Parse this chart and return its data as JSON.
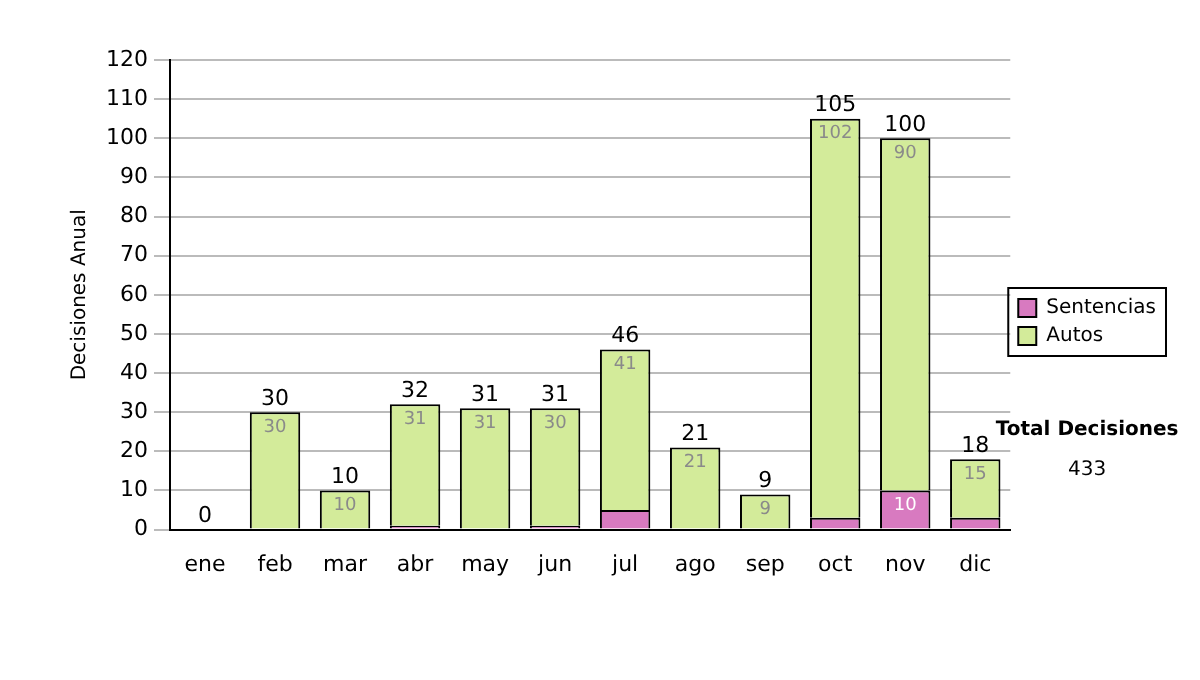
{
  "chart_data": {
    "type": "bar",
    "stacked": true,
    "ylabel": "Decisiones Anual",
    "categories": [
      "ene",
      "feb",
      "mar",
      "abr",
      "may",
      "jun",
      "jul",
      "ago",
      "sep",
      "oct",
      "nov",
      "dic"
    ],
    "series": [
      {
        "name": "Sentencias",
        "color": "#d87ac0",
        "values": [
          0,
          0,
          0,
          1,
          0,
          1,
          5,
          0,
          0,
          3,
          10,
          3
        ],
        "value_labels": [
          null,
          null,
          null,
          null,
          null,
          null,
          null,
          null,
          null,
          null,
          "10",
          null
        ]
      },
      {
        "name": "Autos",
        "color": "#d3eb9a",
        "values": [
          0,
          30,
          10,
          31,
          31,
          30,
          41,
          21,
          9,
          102,
          90,
          15
        ],
        "value_labels": [
          null,
          "30",
          "10",
          "31",
          "31",
          "30",
          "41",
          "21",
          "9",
          "102",
          "90",
          "15"
        ]
      }
    ],
    "totals": [
      "0",
      "30",
      "10",
      "32",
      "31",
      "31",
      "46",
      "21",
      "9",
      "105",
      "100",
      "18"
    ],
    "ylim": [
      0,
      120
    ],
    "yticks": [
      0,
      10,
      20,
      30,
      40,
      50,
      60,
      70,
      80,
      90,
      100,
      110,
      120
    ],
    "grid": "y",
    "legend": "right",
    "annotations": [
      "Total Decisiones",
      "433"
    ]
  }
}
